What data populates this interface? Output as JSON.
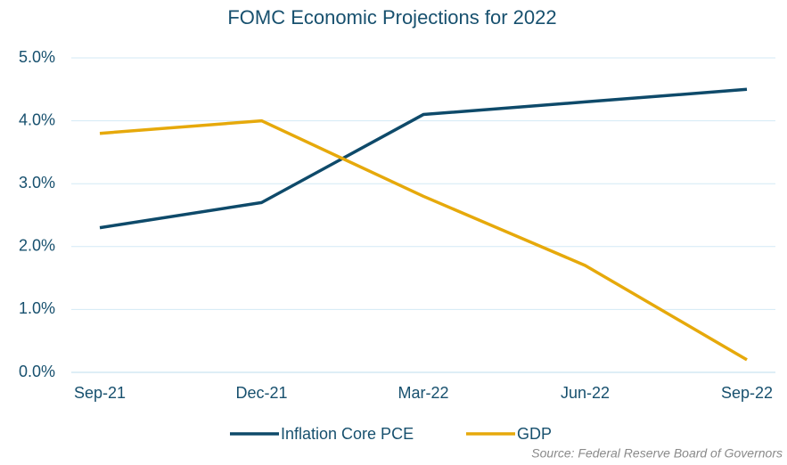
{
  "chart_data": {
    "type": "line",
    "title": "FOMC Economic Projections for 2022",
    "categories": [
      "Sep-21",
      "Dec-21",
      "Mar-22",
      "Jun-22",
      "Sep-22"
    ],
    "series": [
      {
        "name": "Inflation Core PCE",
        "color": "#0e4a6a",
        "values": [
          2.3,
          2.7,
          4.1,
          4.3,
          4.5
        ]
      },
      {
        "name": "GDP",
        "color": "#e6a90b",
        "values": [
          3.8,
          4.0,
          2.8,
          1.7,
          0.2
        ]
      }
    ],
    "ylim": [
      0,
      5
    ],
    "yticks": [
      {
        "value": 0,
        "label": "0.0%"
      },
      {
        "value": 1,
        "label": "1.0%"
      },
      {
        "value": 2,
        "label": "2.0%"
      },
      {
        "value": 3,
        "label": "3.0%"
      },
      {
        "value": 4,
        "label": "4.0%"
      },
      {
        "value": 5,
        "label": "5.0%"
      }
    ],
    "grid": true,
    "legend": "bottom",
    "source": "Source: Federal Reserve Board of Governors"
  }
}
